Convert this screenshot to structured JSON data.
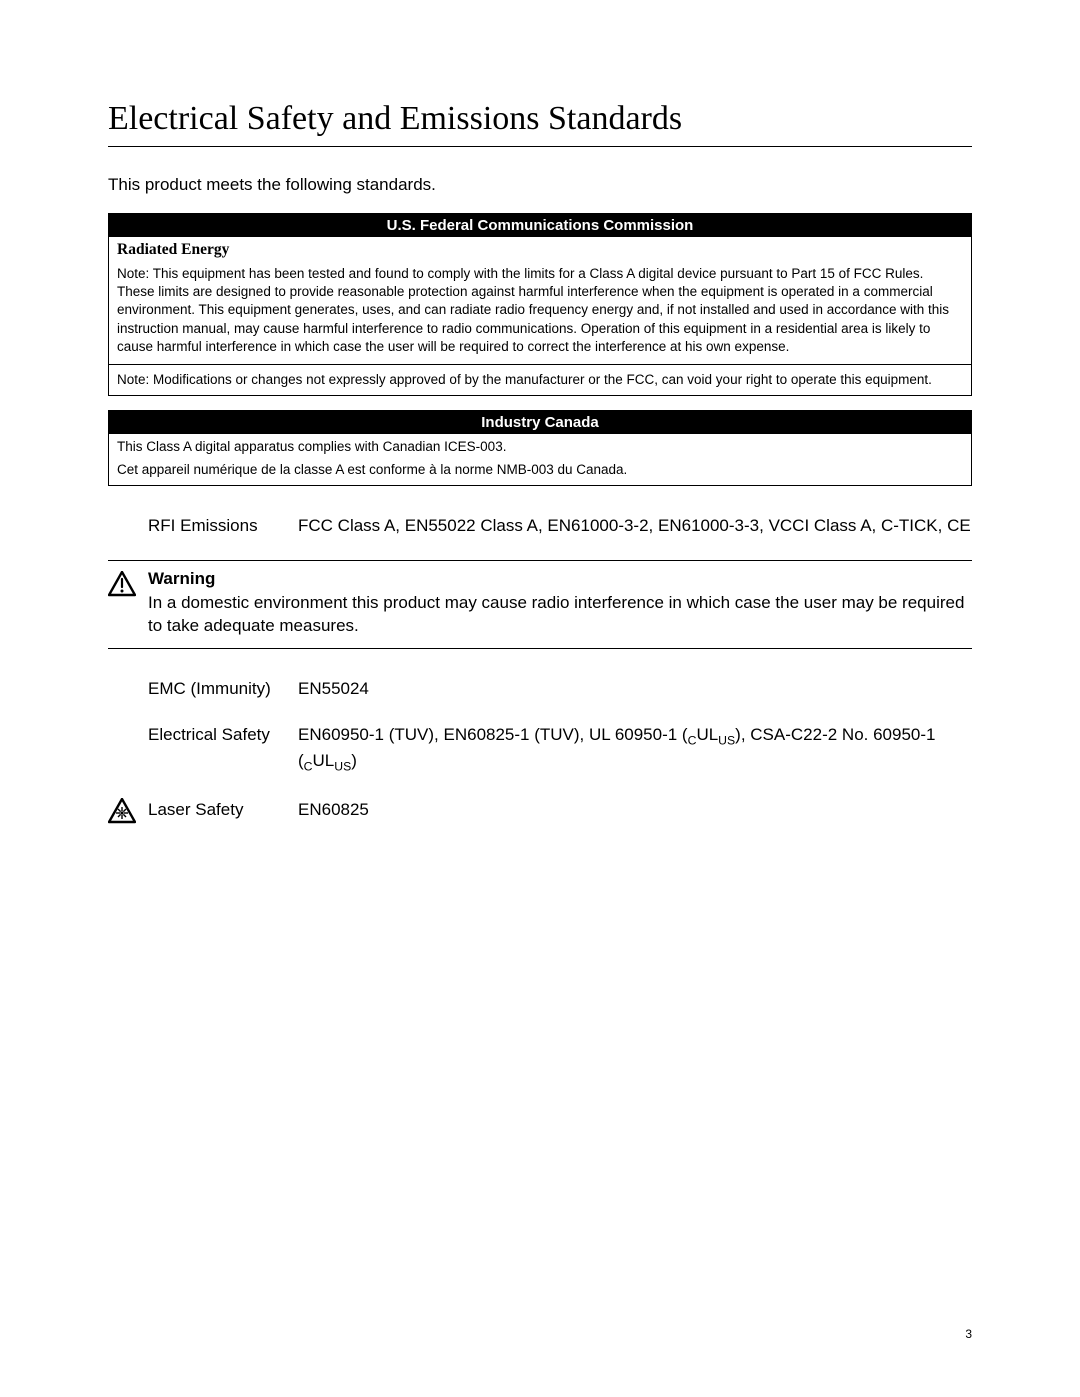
{
  "title": "Electrical Safety and Emissions Standards",
  "intro": "This product meets the following standards.",
  "fcc": {
    "header": "U.S. Federal Communications Commission",
    "subhead": "Radiated Energy",
    "note1": "Note: This equipment has been tested and found to comply with the limits for a Class A digital device pursuant to Part 15 of FCC Rules. These limits are designed to provide reasonable protection against harmful interference when the equipment is operated in a commercial environment. This equipment generates, uses, and can radiate radio frequency energy and, if not installed and used in accordance with this instruction manual, may cause harmful interference to radio communications. Operation of this equipment in a residential area is likely to cause harmful interference in which case the user will be required to correct the interference at his own expense.",
    "note2": "Note: Modifications or changes not expressly approved of by the manufacturer or the FCC, can void your right to operate this equipment."
  },
  "ic": {
    "header": "Industry Canada",
    "line1": "This Class A digital apparatus complies with Canadian ICES-003.",
    "line2": "Cet appareil numérique de la classe A est conforme à la norme NMB-003 du Canada."
  },
  "specs": {
    "rfi_label": "RFI Emissions",
    "rfi_value": "FCC Class A, EN55022 Class A, EN61000-3-2, EN61000-3-3, VCCI Class A, C-TICK, CE",
    "emc_label": "EMC (Immunity)",
    "emc_value": "EN55024",
    "elec_label": "Electrical Safety",
    "elec_value_html": "EN60950-1 (TUV), EN60825-1 (TUV), UL 60950-1 (<sub>C</sub>UL<sub>US</sub>), CSA-C22-2 No. 60950-1 (<sub>C</sub>UL<sub>US</sub>)",
    "laser_label": "Laser Safety",
    "laser_value": "EN60825"
  },
  "warning": {
    "title": "Warning",
    "body": "In a domestic environment this product may cause radio interference in which case the user may be required to take adequate measures."
  },
  "page_number": "3"
}
